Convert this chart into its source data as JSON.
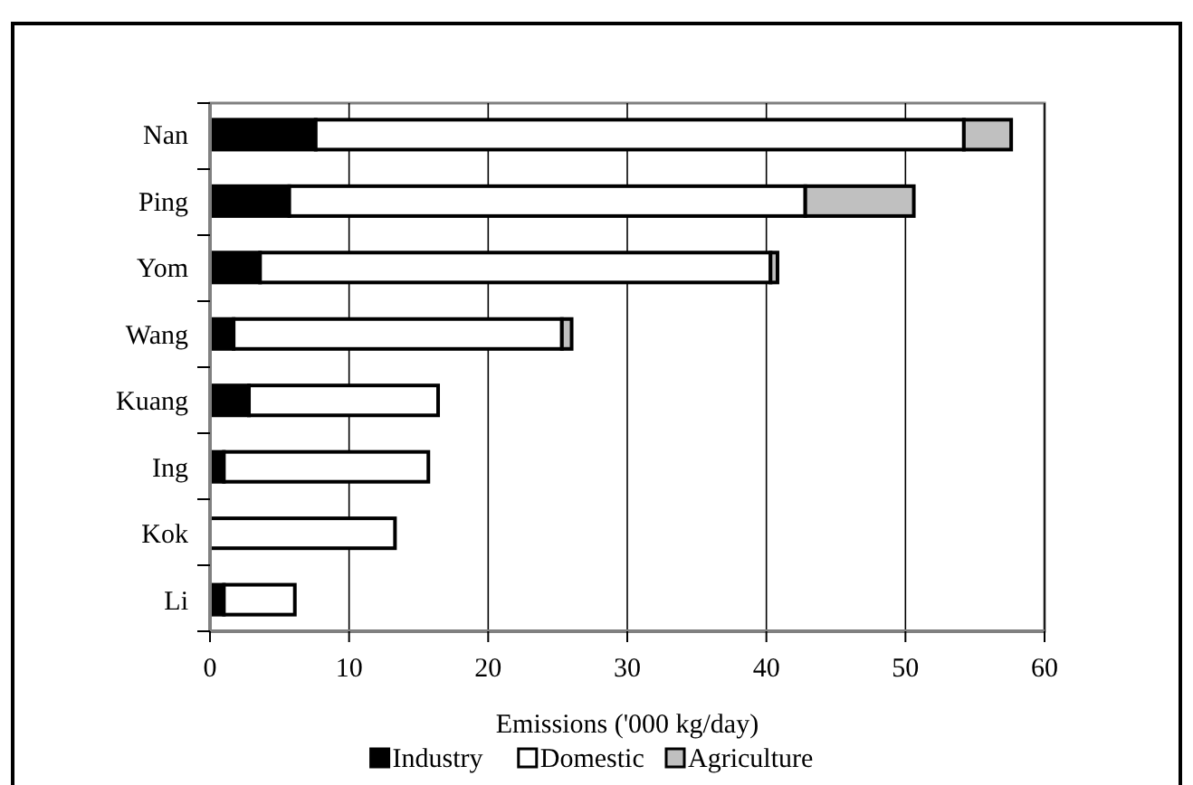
{
  "chart_data": {
    "type": "bar",
    "orientation": "horizontal",
    "stacked": true,
    "xlabel": "Emissions ('000 kg/day)",
    "categories": [
      "Nan",
      "Ping",
      "Yom",
      "Wang",
      "Kuang",
      "Ing",
      "Kok",
      "Li"
    ],
    "series": [
      {
        "name": "Industry",
        "color": "#000000",
        "values": [
          7.6,
          5.7,
          3.6,
          1.7,
          2.8,
          1.0,
          null,
          1.0
        ]
      },
      {
        "name": "Domestic",
        "color": "#ffffff",
        "values": [
          46.6,
          37.1,
          36.7,
          23.6,
          13.6,
          14.7,
          13.3,
          5.1
        ]
      },
      {
        "name": "Agriculture",
        "color": "#c0c0c0",
        "values": [
          3.4,
          7.8,
          0.5,
          0.7,
          0,
          0,
          0,
          0
        ]
      }
    ],
    "xlim": [
      0,
      60
    ],
    "xticks": [
      0,
      10,
      20,
      30,
      40,
      50,
      60
    ],
    "grid": "x",
    "legend": "bottom"
  }
}
